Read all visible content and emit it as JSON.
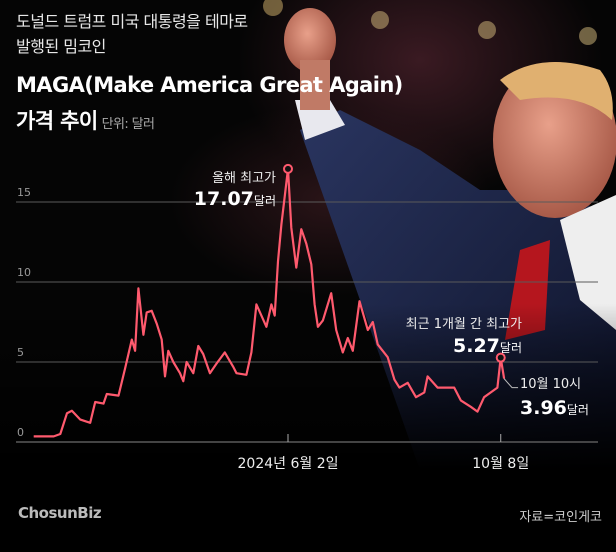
{
  "header": {
    "line1": "도널드 트럼프 미국 대통령을 테마로",
    "line2": "발행된 밈코인",
    "title": "MAGA(Make America Great Again)",
    "title2": "가격 추이",
    "unit": "단위: 달러"
  },
  "footer": {
    "logo": "ChosunBiz",
    "source": "자료=코인게코"
  },
  "colors": {
    "line": "#ff5a6e",
    "grid": "#5a5a5a",
    "background": "#050505"
  },
  "chart_data": {
    "type": "line",
    "title": "MAGA(Make America Great Again) 가격 추이",
    "ylabel": "단위: 달러",
    "ylim": [
      0,
      17.5
    ],
    "yticks": [
      "0",
      "5",
      "10",
      "15"
    ],
    "xticks": [
      {
        "date": "2024-06-02",
        "label": "2024년 6월 2일"
      },
      {
        "date": "2024-10-08",
        "label": "10월 8일"
      }
    ],
    "grid": true,
    "series": [
      {
        "x": [
          "2024-01-01",
          "2024-01-13",
          "2024-01-17",
          "2024-01-21",
          "2024-01-24",
          "2024-01-29",
          "2024-02-04",
          "2024-02-07",
          "2024-02-12",
          "2024-02-14",
          "2024-02-21",
          "2024-02-25",
          "2024-02-29",
          "2024-03-02",
          "2024-03-04",
          "2024-03-07",
          "2024-03-09",
          "2024-03-12",
          "2024-03-15",
          "2024-03-18",
          "2024-03-20",
          "2024-03-22",
          "2024-03-25",
          "2024-03-29",
          "2024-03-31",
          "2024-04-02",
          "2024-04-06",
          "2024-04-09",
          "2024-04-12",
          "2024-04-16",
          "2024-04-20",
          "2024-04-25",
          "2024-04-30",
          "2024-05-02",
          "2024-05-08",
          "2024-05-11",
          "2024-05-14",
          "2024-05-17",
          "2024-05-20",
          "2024-05-23",
          "2024-05-25",
          "2024-05-27",
          "2024-05-29",
          "2024-06-02",
          "2024-06-04",
          "2024-06-07",
          "2024-06-10",
          "2024-06-13",
          "2024-06-16",
          "2024-06-18",
          "2024-06-20",
          "2024-06-23",
          "2024-06-28",
          "2024-07-01",
          "2024-07-05",
          "2024-07-08",
          "2024-07-11",
          "2024-07-15",
          "2024-07-20",
          "2024-07-23",
          "2024-07-26",
          "2024-08-01",
          "2024-08-05",
          "2024-08-08",
          "2024-08-13",
          "2024-08-18",
          "2024-08-23",
          "2024-08-25",
          "2024-08-31",
          "2024-09-06",
          "2024-09-10",
          "2024-09-14",
          "2024-09-20",
          "2024-09-24",
          "2024-09-28",
          "2024-10-02",
          "2024-10-06",
          "2024-10-08",
          "2024-10-10"
        ],
        "y": [
          0.35,
          0.35,
          0.5,
          1.8,
          1.95,
          1.4,
          1.2,
          2.5,
          2.4,
          3.0,
          2.9,
          4.6,
          6.4,
          5.7,
          9.6,
          6.7,
          8.1,
          8.2,
          7.4,
          6.4,
          4.1,
          5.7,
          5.0,
          4.3,
          3.8,
          5.0,
          4.3,
          6.0,
          5.5,
          4.3,
          4.9,
          5.6,
          4.7,
          4.3,
          4.2,
          5.6,
          8.6,
          7.9,
          7.2,
          8.6,
          7.9,
          11.3,
          13.6,
          17.07,
          13.4,
          10.9,
          13.3,
          12.4,
          11.1,
          8.6,
          7.2,
          7.6,
          9.3,
          7.0,
          5.6,
          6.5,
          5.7,
          8.8,
          7.0,
          7.5,
          6.1,
          5.3,
          3.9,
          3.4,
          3.7,
          2.8,
          3.1,
          4.1,
          3.4,
          3.4,
          3.4,
          2.6,
          2.2,
          1.9,
          2.8,
          3.1,
          3.4,
          5.27,
          3.96
        ]
      }
    ],
    "annotations": [
      {
        "date": "2024-06-02",
        "label": "올해 최고가",
        "value_text": "17.07",
        "unit": "달러"
      },
      {
        "date": "2024-10-08",
        "label": "최근 1개월 간 최고가",
        "value_text": "5.27",
        "unit": "달러"
      },
      {
        "date": "2024-10-10",
        "label": "10월 10시",
        "value_text": "3.96",
        "unit": "달러"
      }
    ]
  }
}
